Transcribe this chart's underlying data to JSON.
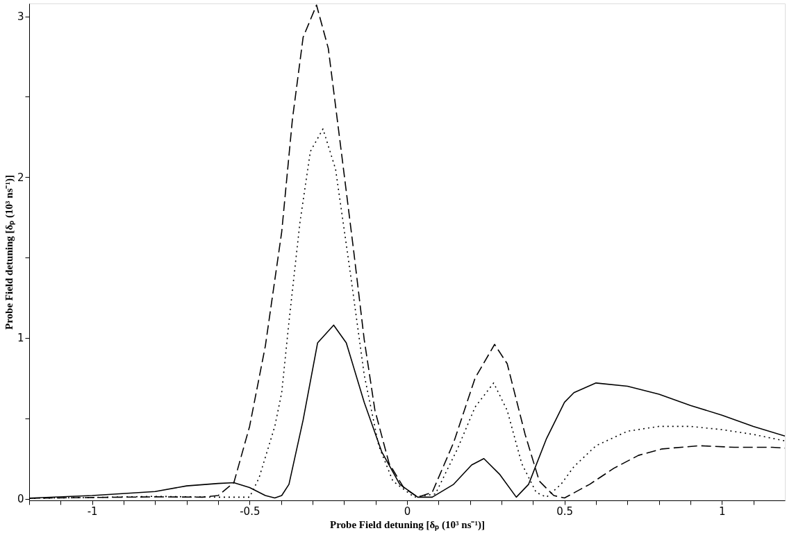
{
  "chart_data": {
    "type": "line",
    "xlabel": "Probe Field detuning [δₚ (10³ ns⁻¹)]",
    "ylabel": "Probe Field detuning [δₚ (10³ ns⁻¹)]",
    "xlim": [
      -1.2,
      1.2
    ],
    "ylim": [
      -0.01,
      3.08
    ],
    "xticks": [
      {
        "value": -1.2,
        "label": null
      },
      {
        "value": -1.1,
        "label": null
      },
      -1,
      {
        "value": -0.9,
        "label": null
      },
      {
        "value": -0.8,
        "label": null
      },
      {
        "value": -0.7,
        "label": null
      },
      {
        "value": -0.6,
        "label": null
      },
      -0.5,
      {
        "value": -0.4,
        "label": null
      },
      {
        "value": -0.3,
        "label": null
      },
      {
        "value": -0.2,
        "label": null
      },
      {
        "value": -0.1,
        "label": null
      },
      0,
      {
        "value": 0.1,
        "label": null
      },
      {
        "value": 0.2,
        "label": null
      },
      {
        "value": 0.3,
        "label": null
      },
      {
        "value": 0.4,
        "label": null
      },
      0.5,
      {
        "value": 0.6,
        "label": null
      },
      {
        "value": 0.7,
        "label": null
      },
      {
        "value": 0.8,
        "label": null
      },
      {
        "value": 0.9,
        "label": null
      },
      1,
      {
        "value": 1.1,
        "label": null
      }
    ],
    "yticks": [
      0,
      {
        "value": 0.5,
        "label": null
      },
      1,
      {
        "value": 1.5,
        "label": null
      },
      2,
      {
        "value": 2.5,
        "label": null
      },
      3
    ],
    "grid": false,
    "marker": "none",
    "series": [
      {
        "color": "#000000",
        "line_style": "solid",
        "x": [
          -1.2,
          -1.0,
          -0.8,
          -0.7,
          -0.6,
          -0.55,
          -0.5,
          -0.45,
          -0.42,
          -0.398,
          -0.375,
          -0.33,
          -0.284,
          -0.233,
          -0.193,
          -0.136,
          -0.08,
          -0.023,
          0.034,
          0.08,
          0.148,
          0.205,
          0.244,
          0.295,
          0.347,
          0.386,
          0.443,
          0.5,
          0.53,
          0.6,
          0.7,
          0.8,
          0.9,
          1.0,
          1.1,
          1.2
        ],
        "values": [
          0.004,
          0.02,
          0.045,
          0.08,
          0.095,
          0.1,
          0.07,
          0.02,
          0.005,
          0.02,
          0.09,
          0.49,
          0.97,
          1.08,
          0.97,
          0.6,
          0.29,
          0.09,
          0.01,
          0.01,
          0.09,
          0.21,
          0.25,
          0.15,
          0.01,
          0.09,
          0.375,
          0.6,
          0.66,
          0.72,
          0.7,
          0.65,
          0.58,
          0.52,
          0.45,
          0.39
        ]
      },
      {
        "color": "#000000",
        "line_style": "dotted",
        "x": [
          -1.2,
          -1.0,
          -0.8,
          -0.6,
          -0.5,
          -0.47,
          -0.42,
          -0.398,
          -0.375,
          -0.34,
          -0.307,
          -0.267,
          -0.227,
          -0.182,
          -0.136,
          -0.09,
          -0.045,
          0.023,
          0.09,
          0.16,
          0.216,
          0.275,
          0.318,
          0.364,
          0.41,
          0.443,
          0.489,
          0.53,
          0.6,
          0.7,
          0.8,
          0.9,
          1.0,
          1.1,
          1.2
        ],
        "values": [
          0.003,
          0.008,
          0.015,
          0.01,
          0.01,
          0.13,
          0.45,
          0.66,
          1.1,
          1.72,
          2.16,
          2.3,
          2.05,
          1.43,
          0.77,
          0.33,
          0.11,
          0.01,
          0.03,
          0.31,
          0.57,
          0.72,
          0.55,
          0.22,
          0.04,
          0.01,
          0.09,
          0.2,
          0.33,
          0.42,
          0.45,
          0.45,
          0.43,
          0.4,
          0.36
        ]
      },
      {
        "color": "#000000",
        "line_style": "dashed",
        "x": [
          -1.2,
          -1.0,
          -0.8,
          -0.65,
          -0.6,
          -0.55,
          -0.5,
          -0.45,
          -0.398,
          -0.364,
          -0.33,
          -0.2875,
          -0.25,
          -0.205,
          -0.17,
          -0.136,
          -0.102,
          -0.057,
          -0.011,
          0.034,
          0.08,
          0.148,
          0.216,
          0.278,
          0.318,
          0.375,
          0.42,
          0.466,
          0.5,
          0.58,
          0.657,
          0.735,
          0.81,
          0.928,
          1.04,
          1.16,
          1.2
        ],
        "values": [
          0.003,
          0.008,
          0.012,
          0.01,
          0.02,
          0.1,
          0.45,
          0.95,
          1.66,
          2.36,
          2.87,
          3.07,
          2.8,
          2.1,
          1.55,
          0.99,
          0.55,
          0.22,
          0.07,
          0.01,
          0.04,
          0.35,
          0.75,
          0.96,
          0.84,
          0.4,
          0.11,
          0.02,
          0.005,
          0.09,
          0.19,
          0.27,
          0.31,
          0.33,
          0.32,
          0.32,
          0.315
        ]
      }
    ]
  }
}
